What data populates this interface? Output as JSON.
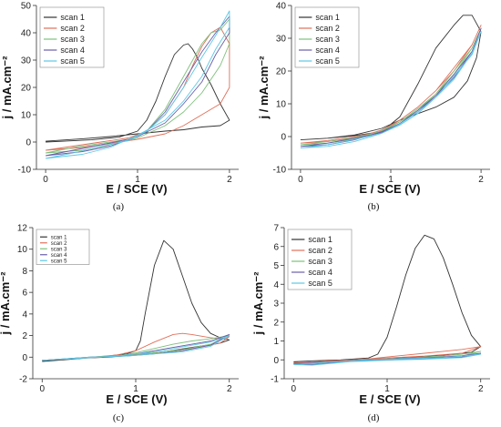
{
  "chart_data": [
    {
      "type": "line",
      "caption": "(a)",
      "xlabel": "E / SCE (V)",
      "ylabel": "j / mA.cm⁻²",
      "xlim": [
        -0.1,
        2.1
      ],
      "ylim": [
        -10,
        50
      ],
      "xticks": [
        0,
        1,
        2
      ],
      "yticks": [
        -10,
        0,
        10,
        20,
        30,
        40,
        50
      ],
      "legend_position": "top-left",
      "series": [
        {
          "name": "scan 1",
          "color": "#333333",
          "x": [
            0.0,
            0.2,
            0.5,
            0.8,
            1.0,
            1.1,
            1.2,
            1.3,
            1.4,
            1.5,
            1.55,
            1.6,
            1.65,
            1.7,
            1.8,
            1.9,
            2.0,
            1.9,
            1.7,
            1.5,
            1.3,
            1.0,
            0.7,
            0.4,
            0.0
          ],
          "y": [
            0,
            0.3,
            0.8,
            1.8,
            4,
            8,
            15,
            24,
            32,
            35.5,
            36,
            34,
            31,
            27,
            21,
            14,
            8,
            6,
            5.5,
            4.5,
            4,
            3,
            2,
            1.2,
            0.3
          ]
        },
        {
          "name": "scan 2",
          "color": "#e0705a",
          "x": [
            0.0,
            0.3,
            0.6,
            0.9,
            1.1,
            1.3,
            1.5,
            1.6,
            1.7,
            1.8,
            1.9,
            2.0,
            2.0,
            1.9,
            1.8,
            1.7,
            1.5,
            1.3,
            1.0,
            0.7,
            0.4,
            0.0
          ],
          "y": [
            -3,
            -1.5,
            0,
            1.5,
            4,
            10,
            20,
            28,
            35,
            40,
            42,
            36,
            20,
            14,
            12,
            10,
            6,
            3,
            1,
            -0.5,
            -2,
            -3
          ]
        },
        {
          "name": "scan 3",
          "color": "#7dc07a",
          "x": [
            0.0,
            0.3,
            0.6,
            0.9,
            1.1,
            1.3,
            1.5,
            1.7,
            1.8,
            1.9,
            2.0,
            2.0,
            1.9,
            1.7,
            1.5,
            1.3,
            1.0,
            0.7,
            0.4,
            0.0
          ],
          "y": [
            -4,
            -2,
            -0.5,
            1,
            4,
            12,
            24,
            36,
            40,
            41,
            45,
            36,
            28,
            18,
            11,
            6,
            1.5,
            -1,
            -3,
            -4
          ]
        },
        {
          "name": "scan 4",
          "color": "#6a5fa8",
          "x": [
            0.0,
            0.3,
            0.6,
            0.9,
            1.1,
            1.3,
            1.5,
            1.7,
            1.85,
            2.0,
            2.0,
            1.85,
            1.7,
            1.5,
            1.3,
            1.0,
            0.7,
            0.4,
            0.0
          ],
          "y": [
            -5,
            -3,
            -1,
            1,
            4,
            11,
            22,
            33,
            40,
            46,
            40,
            32,
            22,
            14,
            7,
            2,
            -1.5,
            -3.5,
            -5
          ]
        },
        {
          "name": "scan 5",
          "color": "#5ec8e6",
          "x": [
            0.0,
            0.3,
            0.6,
            0.9,
            1.1,
            1.3,
            1.5,
            1.7,
            1.85,
            2.0,
            2.0,
            1.85,
            1.7,
            1.5,
            1.3,
            1.0,
            0.7,
            0.4,
            0.0
          ],
          "y": [
            -6,
            -4,
            -1.5,
            0.5,
            4,
            10,
            20,
            31,
            39,
            48,
            42,
            34,
            24,
            15,
            8,
            2.5,
            -2,
            -4.5,
            -6
          ]
        }
      ]
    },
    {
      "type": "line",
      "caption": "(b)",
      "xlabel": "E / SCE (V)",
      "ylabel": "j / mA.cm⁻²",
      "xlim": [
        -0.1,
        2.1
      ],
      "ylim": [
        -10,
        40
      ],
      "xticks": [
        0,
        1,
        2
      ],
      "yticks": [
        -10,
        0,
        10,
        20,
        30,
        40
      ],
      "legend_position": "top-left",
      "series": [
        {
          "name": "scan 1",
          "color": "#333333",
          "x": [
            0.0,
            0.3,
            0.6,
            0.9,
            1.1,
            1.3,
            1.5,
            1.7,
            1.8,
            1.9,
            2.0,
            1.95,
            1.85,
            1.7,
            1.5,
            1.3,
            1.1,
            0.9,
            0.6,
            0.3,
            0.0
          ],
          "y": [
            -1,
            -0.5,
            0.3,
            1.5,
            6,
            16,
            27,
            34,
            37,
            37,
            32,
            24,
            17,
            12,
            9,
            7,
            5,
            2.5,
            0.5,
            -0.5,
            -1
          ]
        },
        {
          "name": "scan 2",
          "color": "#e0705a",
          "x": [
            0.0,
            0.3,
            0.6,
            0.9,
            1.1,
            1.3,
            1.5,
            1.7,
            1.9,
            2.0,
            1.9,
            1.7,
            1.5,
            1.3,
            1.1,
            0.9,
            0.6,
            0.3,
            0.0
          ],
          "y": [
            -2,
            -1.2,
            0,
            1.5,
            5,
            9,
            14,
            20,
            28,
            34,
            28,
            21,
            14,
            9,
            5,
            2,
            -0.5,
            -1.5,
            -2
          ]
        },
        {
          "name": "scan 3",
          "color": "#7dc07a",
          "x": [
            0.0,
            0.3,
            0.6,
            0.9,
            1.1,
            1.3,
            1.5,
            1.7,
            1.9,
            2.0,
            1.9,
            1.7,
            1.5,
            1.3,
            1.1,
            0.9,
            0.6,
            0.3,
            0.0
          ],
          "y": [
            -2.5,
            -1.5,
            -0.3,
            1.5,
            4.5,
            8.5,
            13,
            19,
            27,
            33,
            27,
            20,
            13,
            8,
            4.5,
            1.8,
            -0.8,
            -2,
            -2.5
          ]
        },
        {
          "name": "scan 4",
          "color": "#6a5fa8",
          "x": [
            0.0,
            0.3,
            0.6,
            0.9,
            1.1,
            1.3,
            1.5,
            1.7,
            1.9,
            2.0,
            1.9,
            1.7,
            1.5,
            1.3,
            1.1,
            0.9,
            0.6,
            0.3,
            0.0
          ],
          "y": [
            -3,
            -2,
            -0.5,
            1.2,
            4,
            8,
            12.5,
            18,
            26,
            33,
            26,
            19,
            12.5,
            7.5,
            4,
            1.5,
            -1,
            -2.5,
            -3
          ]
        },
        {
          "name": "scan 5",
          "color": "#5ec8e6",
          "x": [
            0.0,
            0.3,
            0.6,
            0.9,
            1.1,
            1.3,
            1.5,
            1.7,
            1.9,
            2.0,
            1.9,
            1.7,
            1.5,
            1.3,
            1.1,
            0.9,
            0.6,
            0.3,
            0.0
          ],
          "y": [
            -3.5,
            -2.5,
            -0.8,
            1,
            3.8,
            7.5,
            12,
            17.5,
            25.5,
            32,
            25,
            18.5,
            12,
            7,
            3.5,
            1,
            -1.5,
            -3,
            -3.5
          ]
        }
      ]
    },
    {
      "type": "line",
      "caption": "(c)",
      "xlabel": "E / SCE (V)",
      "ylabel": "j / mA.cm⁻²",
      "xlim": [
        -0.1,
        2.1
      ],
      "ylim": [
        -2,
        12
      ],
      "xticks": [
        0,
        1,
        2
      ],
      "yticks": [
        -2,
        0,
        2,
        4,
        6,
        8,
        10,
        12
      ],
      "legend_position": "top-left",
      "series": [
        {
          "name": "scan 1",
          "color": "#333333",
          "x": [
            0.0,
            0.3,
            0.6,
            0.9,
            1.0,
            1.05,
            1.1,
            1.2,
            1.3,
            1.4,
            1.5,
            1.6,
            1.7,
            1.8,
            1.9,
            2.0,
            1.9,
            1.6,
            1.3,
            1.0,
            0.7,
            0.4,
            0.0
          ],
          "y": [
            -0.4,
            -0.2,
            0.0,
            0.3,
            0.6,
            1.5,
            4,
            8.5,
            10.8,
            10,
            7.5,
            5,
            3.2,
            2.2,
            1.8,
            1.6,
            1.3,
            0.9,
            0.5,
            0.2,
            0.0,
            -0.1,
            -0.3
          ]
        },
        {
          "name": "scan 2",
          "color": "#e0705a",
          "x": [
            0.0,
            0.4,
            0.8,
            1.0,
            1.2,
            1.4,
            1.5,
            1.6,
            1.8,
            1.9,
            2.0,
            1.9,
            1.6,
            1.3,
            1.0,
            0.6,
            0.2,
            0.0
          ],
          "y": [
            -0.3,
            -0.1,
            0.2,
            0.6,
            1.4,
            2.1,
            2.2,
            2.1,
            1.8,
            1.7,
            1.9,
            1.3,
            0.8,
            0.5,
            0.2,
            0.0,
            -0.2,
            -0.3
          ]
        },
        {
          "name": "scan 3",
          "color": "#7dc07a",
          "x": [
            0.0,
            0.4,
            0.8,
            1.0,
            1.2,
            1.4,
            1.6,
            1.8,
            2.0,
            1.8,
            1.5,
            1.2,
            0.9,
            0.5,
            0.0
          ],
          "y": [
            -0.3,
            -0.1,
            0.1,
            0.4,
            0.8,
            1.2,
            1.5,
            1.7,
            2.0,
            1.2,
            0.7,
            0.4,
            0.2,
            0.0,
            -0.3
          ]
        },
        {
          "name": "scan 4",
          "color": "#6a5fa8",
          "x": [
            0.0,
            0.4,
            0.8,
            1.0,
            1.2,
            1.4,
            1.6,
            1.8,
            2.0,
            1.8,
            1.5,
            1.2,
            0.9,
            0.5,
            0.0
          ],
          "y": [
            -0.3,
            -0.1,
            0.1,
            0.3,
            0.6,
            0.9,
            1.2,
            1.5,
            2.1,
            1.1,
            0.6,
            0.3,
            0.1,
            0.0,
            -0.3
          ]
        },
        {
          "name": "scan 5",
          "color": "#5ec8e6",
          "x": [
            0.0,
            0.4,
            0.8,
            1.0,
            1.2,
            1.4,
            1.6,
            1.8,
            2.0,
            1.8,
            1.5,
            1.2,
            0.9,
            0.5,
            0.0
          ],
          "y": [
            -0.3,
            -0.1,
            0.1,
            0.3,
            0.5,
            0.8,
            1.1,
            1.4,
            2.0,
            1.0,
            0.5,
            0.3,
            0.1,
            0.0,
            -0.3
          ]
        }
      ]
    },
    {
      "type": "line",
      "caption": "(d)",
      "xlabel": "E / SCE (V)",
      "ylabel": "j / mA.cm⁻²",
      "xlim": [
        -0.1,
        2.1
      ],
      "ylim": [
        -1,
        7
      ],
      "xticks": [
        0,
        1,
        2
      ],
      "yticks": [
        -1,
        0,
        1,
        2,
        3,
        4,
        5,
        6,
        7
      ],
      "legend_position": "top-left",
      "series": [
        {
          "name": "scan 1",
          "color": "#333333",
          "x": [
            0.0,
            0.2,
            0.5,
            0.8,
            0.9,
            1.0,
            1.1,
            1.2,
            1.3,
            1.4,
            1.5,
            1.6,
            1.7,
            1.8,
            1.9,
            2.0,
            1.9,
            1.6,
            1.3,
            1.0,
            0.7,
            0.4,
            0.1,
            0.0
          ],
          "y": [
            -0.1,
            -0.05,
            0.0,
            0.1,
            0.3,
            1.2,
            2.8,
            4.5,
            5.9,
            6.6,
            6.4,
            5.4,
            4,
            2.5,
            1.3,
            0.7,
            0.4,
            0.25,
            0.15,
            0.05,
            0.0,
            -0.05,
            -0.2,
            -0.1
          ]
        },
        {
          "name": "scan 2",
          "color": "#e0705a",
          "x": [
            0.0,
            0.4,
            0.8,
            1.0,
            1.2,
            1.4,
            1.6,
            1.8,
            2.0,
            1.8,
            1.4,
            1.0,
            0.6,
            0.2,
            0.0
          ],
          "y": [
            -0.15,
            -0.05,
            0.05,
            0.15,
            0.25,
            0.35,
            0.45,
            0.55,
            0.7,
            0.35,
            0.2,
            0.1,
            0.0,
            -0.15,
            -0.15
          ]
        },
        {
          "name": "scan 3",
          "color": "#7dc07a",
          "x": [
            0.0,
            0.4,
            0.8,
            1.2,
            1.6,
            1.8,
            2.0,
            1.8,
            1.4,
            1.0,
            0.6,
            0.2,
            0.0
          ],
          "y": [
            -0.2,
            -0.1,
            0.0,
            0.1,
            0.2,
            0.3,
            0.45,
            0.2,
            0.1,
            0.05,
            -0.05,
            -0.2,
            -0.2
          ]
        },
        {
          "name": "scan 4",
          "color": "#6a5fa8",
          "x": [
            0.0,
            0.4,
            0.8,
            1.2,
            1.6,
            1.8,
            2.0,
            1.8,
            1.4,
            1.0,
            0.6,
            0.2,
            0.0
          ],
          "y": [
            -0.2,
            -0.1,
            0.0,
            0.08,
            0.15,
            0.22,
            0.35,
            0.15,
            0.05,
            0.0,
            -0.08,
            -0.25,
            -0.2
          ]
        },
        {
          "name": "scan 5",
          "color": "#5ec8e6",
          "x": [
            0.0,
            0.4,
            0.8,
            1.2,
            1.6,
            1.8,
            2.0,
            1.8,
            1.4,
            1.0,
            0.6,
            0.2,
            0.0
          ],
          "y": [
            -0.25,
            -0.12,
            0.0,
            0.06,
            0.12,
            0.2,
            0.3,
            0.12,
            0.03,
            -0.02,
            -0.1,
            -0.28,
            -0.25
          ]
        }
      ]
    }
  ]
}
